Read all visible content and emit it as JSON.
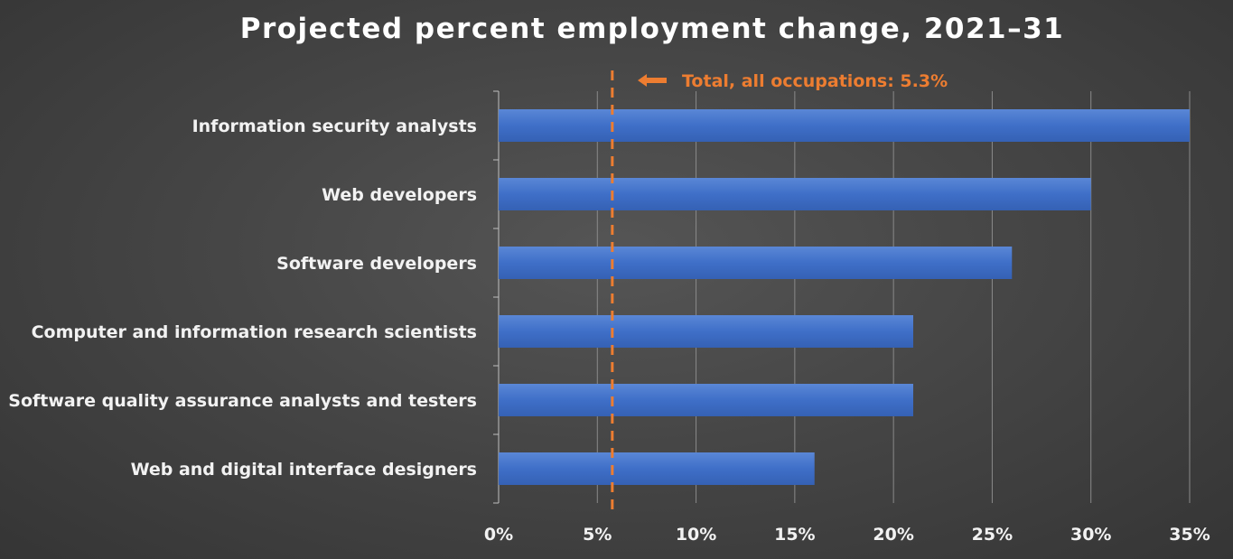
{
  "chart_data": {
    "type": "bar",
    "orientation": "horizontal",
    "title": "Projected percent employment change, 2021–31",
    "xlabel": "",
    "ylabel": "",
    "categories": [
      "Information security analysts",
      "Web developers",
      "Software developers",
      "Computer and information research scientists",
      "Software quality assurance analysts and testers",
      "Web and digital interface designers"
    ],
    "values": [
      35,
      30,
      26,
      21,
      21,
      16
    ],
    "xlim": [
      0,
      35
    ],
    "ticks": [
      0,
      5,
      10,
      15,
      20,
      25,
      30,
      35
    ],
    "tick_labels": [
      "0%",
      "5%",
      "10%",
      "15%",
      "20%",
      "25%",
      "30%",
      "35%"
    ],
    "grid": "vertical",
    "reference_line": {
      "value": 5.3,
      "label": "Total, all occupations: 5.3%",
      "color": "#ed7d31",
      "style": "dashed"
    },
    "bar_color": "#4472c4",
    "background_color": "#3f3f3f"
  }
}
